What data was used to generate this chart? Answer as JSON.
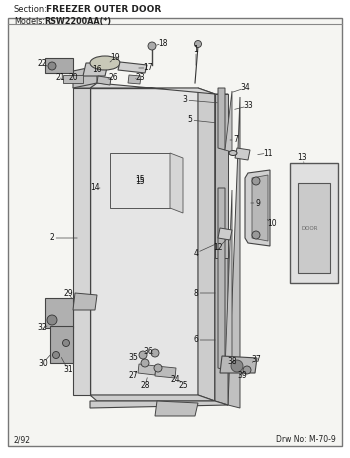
{
  "section_label": "Section:  FREEZER OUTER DOOR",
  "model_label": "Models:  RSW2200AA(*)",
  "footer_left": "2/92",
  "footer_right": "Drw No: M-70-9",
  "bg_color": "#ffffff",
  "border_color": "#888888",
  "lc": "#333333"
}
